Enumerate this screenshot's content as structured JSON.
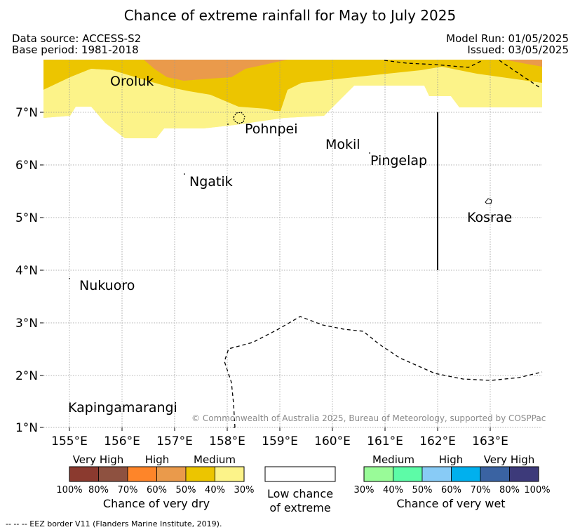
{
  "title": "Chance of extreme rainfall for May to July 2025",
  "data_source": "Data source: ACCESS-S2",
  "base_period": "Base period: 1981-2018",
  "model_run": "Model Run: 01/05/2025",
  "issued": "Issued: 03/05/2025",
  "copyright": "© Commonwealth of Australia 2025, Bureau of Meteorology, supported by COSPPac",
  "map": {
    "lon_ticks": [
      "155°E",
      "156°E",
      "157°E",
      "158°E",
      "159°E",
      "160°E",
      "161°E",
      "162°E",
      "163°E"
    ],
    "lat_ticks": [
      "7°N",
      "6°N",
      "5°N",
      "4°N",
      "3°N",
      "2°N",
      "1°N"
    ],
    "places": {
      "oroluk": "Oroluk",
      "pohnpei": "Pohnpei",
      "mokil": "Mokil",
      "pingelap": "Pingelap",
      "ngatik": "Ngatik",
      "kosrae": "Kosrae",
      "nukuoro": "Nukuoro",
      "kapingamarangi": "Kapingamarangi"
    }
  },
  "legend": {
    "dry": {
      "labels": [
        "Very High",
        "High",
        "Medium"
      ],
      "percents": [
        "100%",
        "80%",
        "70%",
        "60%",
        "50%",
        "40%",
        "30%"
      ],
      "colors": [
        "#8b3a2f",
        "#8e5140",
        "#fe8529",
        "#ea9a4b",
        "#ecc500",
        "#fcf389"
      ],
      "title": "Chance of very dry"
    },
    "neutral": {
      "line1": "Low chance",
      "line2": "of extreme",
      "color": "#ffffff"
    },
    "wet": {
      "labels": [
        "Medium",
        "High",
        "Very High"
      ],
      "percents": [
        "30%",
        "40%",
        "50%",
        "60%",
        "70%",
        "80%",
        "100%"
      ],
      "colors": [
        "#99fb98",
        "#5dfba7",
        "#88cbf6",
        "#00b0ee",
        "#3a63a2",
        "#3d3a7a"
      ],
      "title": "Chance of very wet"
    }
  },
  "footer": "--  --  -- EEZ border V11 (Flanders Marine Institute, 2019)."
}
